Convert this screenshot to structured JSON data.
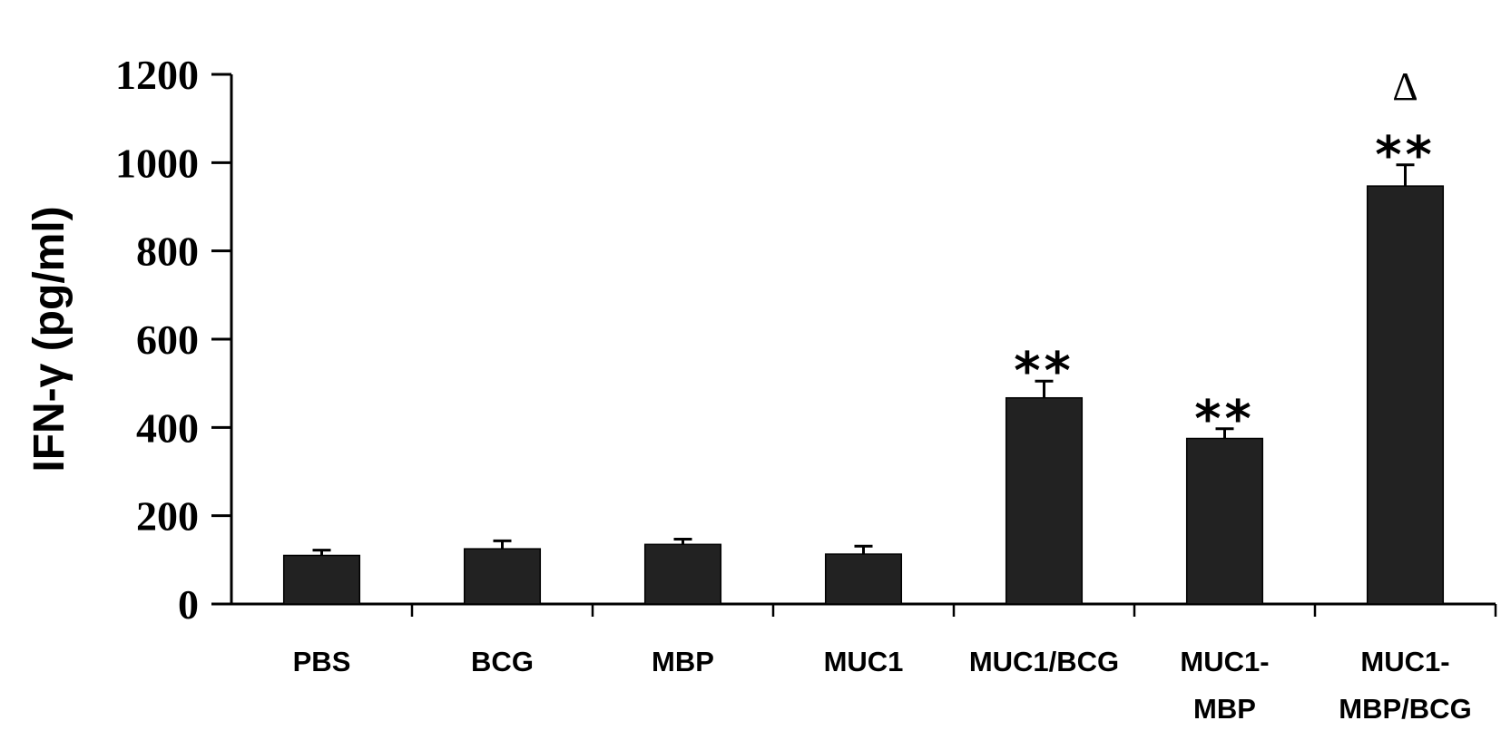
{
  "chart_data": {
    "type": "bar",
    "title": "",
    "xlabel": "",
    "ylabel": "IFN-γ (pg/ml)",
    "ylim": [
      0,
      1200
    ],
    "yticks": [
      0,
      200,
      400,
      600,
      800,
      1000,
      1200
    ],
    "grid": false,
    "legend": "none",
    "bar_color": "#222222",
    "categories": [
      [
        "PBS"
      ],
      [
        "BCG"
      ],
      [
        "MBP"
      ],
      [
        "MUC1"
      ],
      [
        "MUC1/BCG"
      ],
      [
        "MUC1-",
        "MBP"
      ],
      [
        "MUC1-",
        "MBP/BCG"
      ]
    ],
    "values": [
      110,
      125,
      135,
      113,
      467,
      375,
      947
    ],
    "errors": [
      12,
      18,
      12,
      18,
      38,
      22,
      48
    ],
    "annotations": [
      {
        "category_index": 4,
        "lines": [
          "**"
        ]
      },
      {
        "category_index": 5,
        "lines": [
          "**"
        ]
      },
      {
        "category_index": 6,
        "lines": [
          "Δ",
          "**"
        ]
      }
    ]
  }
}
